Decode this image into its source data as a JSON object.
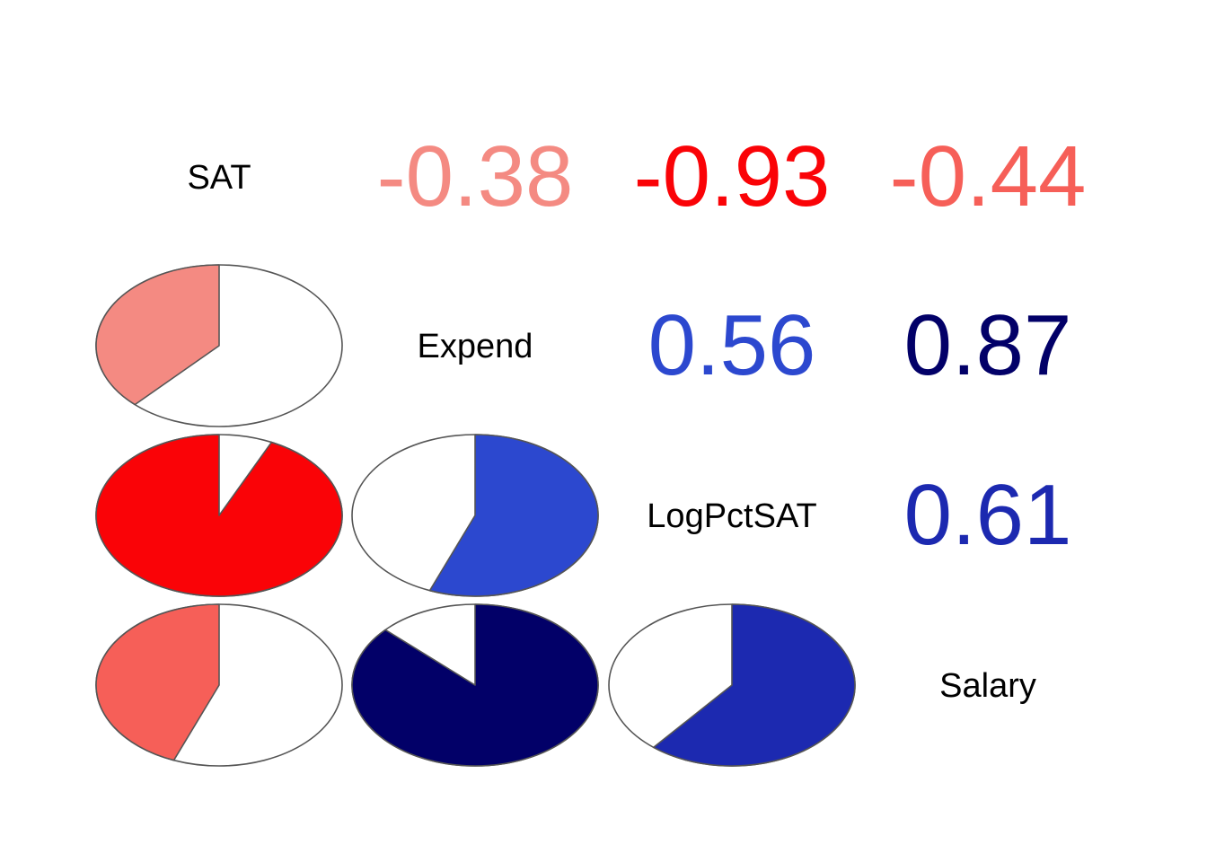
{
  "chart_data": {
    "type": "heatmap",
    "variables": [
      "SAT",
      "Expend",
      "LogPctSAT",
      "Salary"
    ],
    "correlations": [
      {
        "row": "SAT",
        "col": "Expend",
        "value": -0.38,
        "label": "-0.38",
        "color": "#F48A82"
      },
      {
        "row": "SAT",
        "col": "LogPctSAT",
        "value": -0.93,
        "label": "-0.93",
        "color": "#FA0307"
      },
      {
        "row": "SAT",
        "col": "Salary",
        "value": -0.44,
        "label": "-0.44",
        "color": "#F65F58"
      },
      {
        "row": "Expend",
        "col": "LogPctSAT",
        "value": 0.56,
        "label": "0.56",
        "color": "#2C48CF"
      },
      {
        "row": "Expend",
        "col": "Salary",
        "value": 0.87,
        "label": "0.87",
        "color": "#020068"
      },
      {
        "row": "LogPctSAT",
        "col": "Salary",
        "value": 0.61,
        "label": "0.61",
        "color": "#1C29B0"
      }
    ],
    "upper_panel": "numbers",
    "lower_panel": "pie",
    "color_scale": {
      "negative": "#FF0000",
      "zero": "#FFFFFF",
      "positive": "#000066"
    }
  }
}
